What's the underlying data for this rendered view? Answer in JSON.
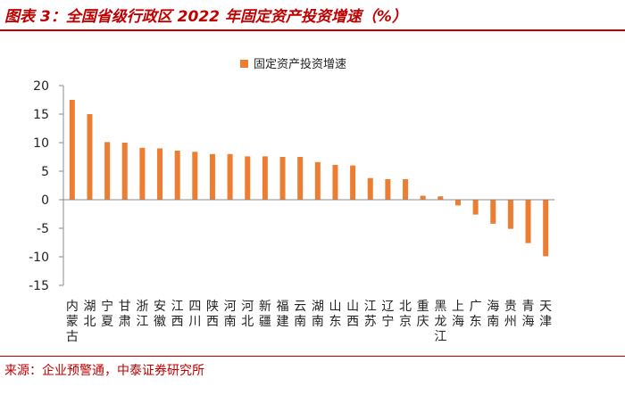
{
  "header": {
    "title": "图表 3：全国省级行政区 2022 年固定资产投资增速（%）"
  },
  "footer": {
    "source": "来源：企业预警通，中泰证券研究所"
  },
  "colors": {
    "bar": "#ed7d31",
    "accent": "#c00000"
  },
  "chart_data": {
    "type": "bar",
    "title": "全国省级行政区 2022 年固定资产投资增速（%）",
    "legend": "固定资产投资增速",
    "ylim": [
      -15,
      20
    ],
    "yticks": [
      20,
      15,
      10,
      5,
      0,
      -5,
      -10,
      -15
    ],
    "categories": [
      "内蒙古",
      "湖北",
      "宁夏",
      "甘肃",
      "浙江",
      "安徽",
      "江西",
      "四川",
      "陕西",
      "河南",
      "河北",
      "新疆",
      "福建",
      "云南",
      "湖南",
      "山东",
      "山西",
      "江苏",
      "辽宁",
      "北京",
      "重庆",
      "黑龙江",
      "上海",
      "广东",
      "海南",
      "贵州",
      "青海",
      "天津"
    ],
    "values": [
      17.5,
      15.0,
      10.1,
      10.0,
      9.1,
      9.0,
      8.6,
      8.4,
      8.0,
      8.0,
      7.6,
      7.6,
      7.5,
      7.5,
      6.6,
      6.1,
      6.0,
      3.8,
      3.6,
      3.6,
      0.7,
      0.6,
      -1.0,
      -2.6,
      -4.2,
      -5.1,
      -7.6,
      -9.9
    ]
  }
}
